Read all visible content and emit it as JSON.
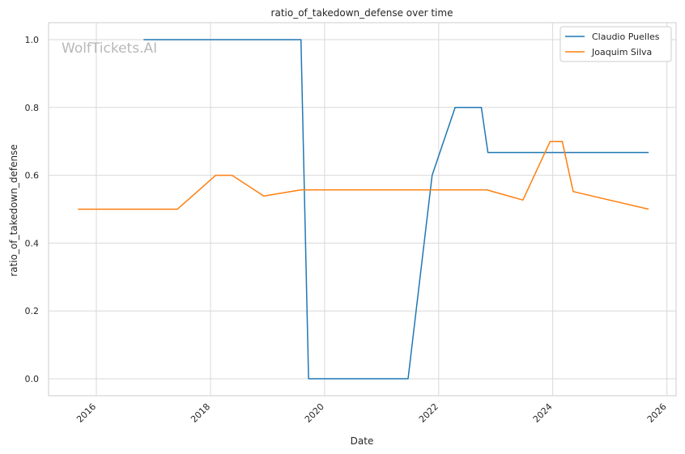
{
  "chart_data": {
    "type": "line",
    "title": "ratio_of_takedown_defense over time",
    "xlabel": "Date",
    "ylabel": "ratio_of_takedown_defense",
    "watermark": "WolfTickets.AI",
    "x_ticks": [
      "2016",
      "2018",
      "2020",
      "2022",
      "2024",
      "2026"
    ],
    "y_ticks": [
      "0.0",
      "0.2",
      "0.4",
      "0.6",
      "0.8",
      "1.0"
    ],
    "xlim": [
      "2015-03-01",
      "2026-03-01"
    ],
    "ylim": [
      -0.05,
      1.05
    ],
    "grid": true,
    "legend_position": "top-right",
    "series": [
      {
        "name": "Claudio Puelles",
        "color": "#1f77b4",
        "points": [
          [
            "2016-10-29",
            1.0
          ],
          [
            "2019-08-03",
            1.0
          ],
          [
            "2019-09-21",
            0.0
          ],
          [
            "2021-06-19",
            0.0
          ],
          [
            "2021-11-20",
            0.6
          ],
          [
            "2022-04-16",
            0.8
          ],
          [
            "2022-10-01",
            0.8
          ],
          [
            "2022-11-12",
            0.667
          ],
          [
            "2025-09-06",
            0.667
          ]
        ]
      },
      {
        "name": "Joaquim Silva",
        "color": "#ff7f0e",
        "points": [
          [
            "2015-09-05",
            0.5
          ],
          [
            "2017-06-03",
            0.5
          ],
          [
            "2018-02-03",
            0.6
          ],
          [
            "2018-05-19",
            0.6
          ],
          [
            "2018-12-08",
            0.539
          ],
          [
            "2019-08-03",
            0.557
          ],
          [
            "2022-11-05",
            0.557
          ],
          [
            "2023-06-24",
            0.527
          ],
          [
            "2023-12-16",
            0.7
          ],
          [
            "2024-03-02",
            0.7
          ],
          [
            "2024-05-11",
            0.552
          ],
          [
            "2025-09-06",
            0.5
          ]
        ]
      }
    ]
  }
}
